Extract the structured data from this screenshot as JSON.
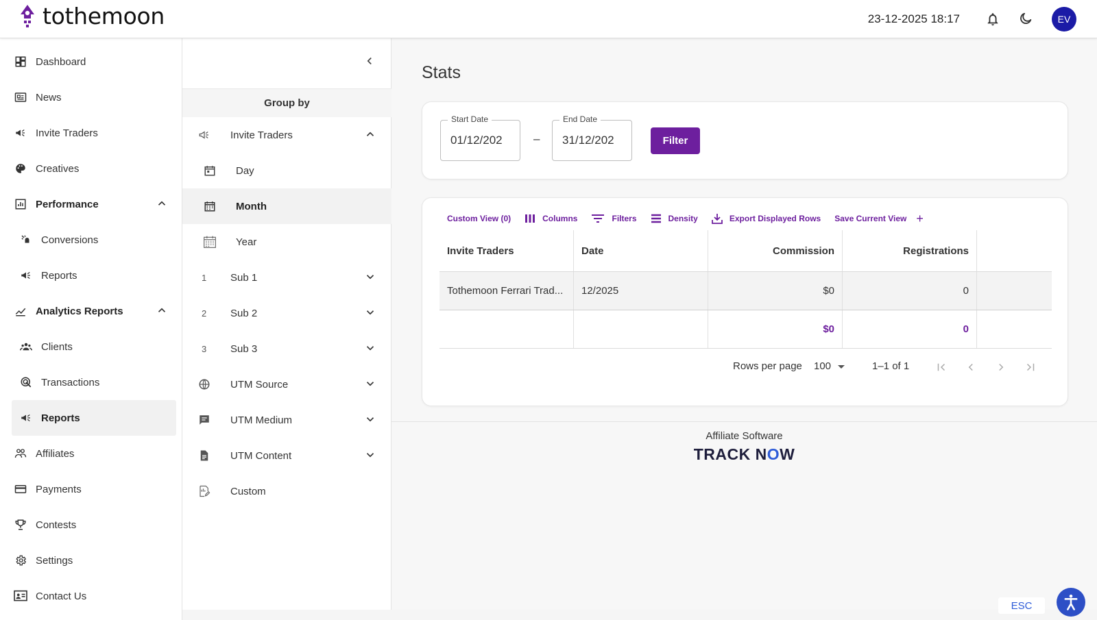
{
  "brand": {
    "name": "tothemoon",
    "logo_icon": "rocket-logo-icon",
    "accent": "#6d1f9e"
  },
  "header": {
    "datetime": "23-12-2025 18:17",
    "avatar_initials": "EV",
    "icons": [
      "bell-icon",
      "moon-icon"
    ]
  },
  "sidebar": {
    "items": [
      {
        "label": "Dashboard",
        "icon": "dashboard-icon"
      },
      {
        "label": "News",
        "icon": "news-icon"
      },
      {
        "label": "Invite Traders",
        "icon": "megaphone-icon"
      },
      {
        "label": "Creatives",
        "icon": "palette-icon"
      },
      {
        "label": "Performance",
        "icon": "bar-chart-icon",
        "expanded": true
      },
      {
        "label": "Conversions",
        "icon": "conversions-icon"
      },
      {
        "label": "Reports",
        "icon": "megaphone-icon"
      },
      {
        "label": "Analytics Reports",
        "icon": "line-chart-icon",
        "expanded": true
      },
      {
        "label": "Clients",
        "icon": "clients-icon"
      },
      {
        "label": "Transactions",
        "icon": "transactions-icon"
      },
      {
        "label": "Reports",
        "icon": "megaphone-icon",
        "active": true
      },
      {
        "label": "Affiliates",
        "icon": "affiliates-icon"
      },
      {
        "label": "Payments",
        "icon": "card-icon"
      },
      {
        "label": "Contests",
        "icon": "trophy-icon"
      },
      {
        "label": "Settings",
        "icon": "gear-icon"
      },
      {
        "label": "Contact Us",
        "icon": "contact-icon"
      }
    ]
  },
  "groupby": {
    "title": "Group by",
    "items": [
      {
        "label": "Invite Traders",
        "icon": "megaphone-icon",
        "expanded": true
      },
      {
        "label": "Day",
        "icon": "calendar-day-icon"
      },
      {
        "label": "Month",
        "icon": "calendar-month-icon",
        "active": true
      },
      {
        "label": "Year",
        "icon": "calendar-year-icon"
      },
      {
        "label": "Sub 1",
        "number": "1"
      },
      {
        "label": "Sub 2",
        "number": "2"
      },
      {
        "label": "Sub 3",
        "number": "3"
      },
      {
        "label": "UTM Source",
        "icon": "globe-icon"
      },
      {
        "label": "UTM Medium",
        "icon": "comment-icon"
      },
      {
        "label": "UTM Content",
        "icon": "document-icon"
      },
      {
        "label": "Custom",
        "icon": "custom-icon"
      }
    ]
  },
  "main": {
    "title": "Stats",
    "filters": {
      "start_label": "Start Date",
      "start_value": "01/12/202",
      "separator": "–",
      "end_label": "End Date",
      "end_value": "31/12/202",
      "button": "Filter"
    },
    "toolbar": {
      "custom_view": "Custom View (0)",
      "columns": "Columns",
      "filters": "Filters",
      "density": "Density",
      "export": "Export Displayed Rows",
      "save_view": "Save Current View",
      "add": "+"
    },
    "table": {
      "columns": [
        "Invite Traders",
        "Date",
        "Commission",
        "Registrations"
      ],
      "rows": [
        [
          "Tothemoon Ferrari Trad...",
          "12/2025",
          "$0",
          "0"
        ]
      ],
      "totals": [
        "",
        "",
        "$0",
        "0"
      ]
    },
    "pagination": {
      "rows_per_page_label": "Rows per page",
      "rows_per_page": "100",
      "range": "1–1 of 1"
    }
  },
  "footer": {
    "text": "Affiliate Software",
    "logo_a": "TRACK N",
    "logo_o": "O",
    "logo_b": "W"
  },
  "widgets": {
    "esc": "ESC"
  }
}
